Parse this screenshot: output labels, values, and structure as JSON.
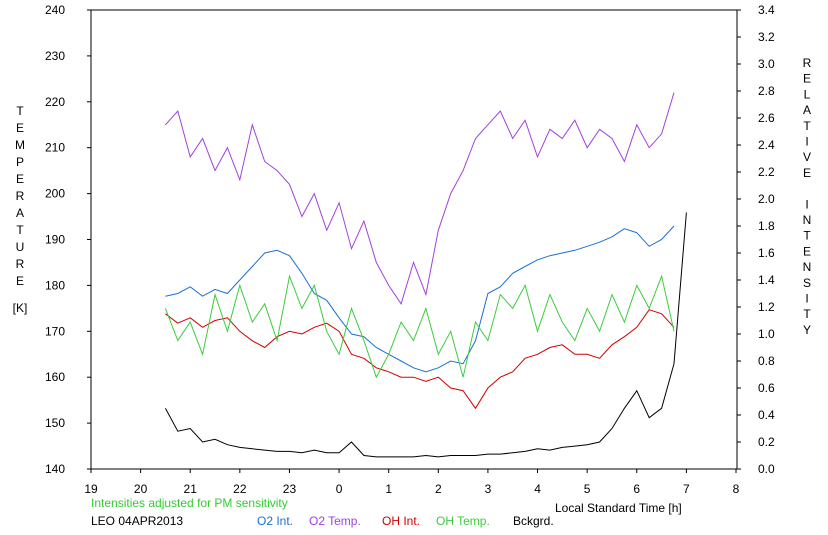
{
  "chart_data": {
    "type": "line",
    "y_label": "TEMPERATURE",
    "y_unit": "[K]",
    "y2_label": "RELATIVE INTENSITY",
    "x_label": "Local Standard Time [h]",
    "note": "Intensities adjusted for PM sensitivity",
    "note_color": "#33cc33",
    "station": "LEO 04APR2013",
    "x": [
      20.5,
      20.75,
      21,
      21.25,
      21.5,
      21.75,
      22,
      22.25,
      22.5,
      22.75,
      23,
      23.25,
      23.5,
      23.75,
      24,
      24.25,
      24.5,
      24.75,
      25,
      25.25,
      25.5,
      25.75,
      26,
      26.25,
      26.5,
      26.75,
      27,
      27.25,
      27.5,
      27.75,
      28,
      28.25,
      28.5,
      28.75,
      29,
      29.25,
      29.5,
      29.75,
      30,
      30.25,
      30.5,
      30.75,
      31
    ],
    "xlim": [
      19,
      32
    ],
    "xticks": [
      19,
      20,
      21,
      22,
      23,
      {
        "value": 24,
        "label": "0"
      },
      {
        "value": 25,
        "label": "1"
      },
      {
        "value": 26,
        "label": "2"
      },
      {
        "value": 27,
        "label": "3"
      },
      {
        "value": 28,
        "label": "4"
      },
      {
        "value": 29,
        "label": "5"
      },
      {
        "value": 30,
        "label": "6"
      },
      {
        "value": 31,
        "label": "7"
      },
      {
        "value": 32,
        "label": "8"
      }
    ],
    "ylim": [
      140,
      240
    ],
    "yticks": [
      140,
      150,
      160,
      170,
      180,
      190,
      200,
      210,
      220,
      230,
      240
    ],
    "y2lim": [
      0,
      3.4
    ],
    "y2ticks": [
      {
        "value": 0,
        "label": "0.0"
      },
      0.2,
      0.4,
      0.6,
      0.8,
      {
        "value": 1,
        "label": "1.0"
      },
      1.2,
      1.4,
      1.6,
      1.8,
      {
        "value": 2,
        "label": "2.0"
      },
      2.2,
      2.4,
      2.6,
      2.8,
      {
        "value": 3,
        "label": "3.0"
      },
      3.2,
      3.4
    ],
    "grid": false,
    "series": [
      {
        "name": "O2 Int.",
        "color": "#1c6fd8",
        "axis": "y2",
        "values": [
          1.28,
          1.3,
          1.35,
          1.28,
          1.33,
          1.3,
          1.4,
          1.5,
          1.6,
          1.62,
          1.58,
          1.45,
          1.3,
          1.25,
          1.12,
          1.0,
          0.98,
          0.9,
          0.85,
          0.8,
          0.75,
          0.72,
          0.75,
          0.8,
          0.78,
          0.95,
          1.3,
          1.35,
          1.45,
          1.5,
          1.55,
          1.58,
          1.6,
          1.62,
          1.65,
          1.68,
          1.72,
          1.78,
          1.75,
          1.65,
          1.7,
          1.8,
          null
        ]
      },
      {
        "name": "O2 Temp.",
        "color": "#a040e0",
        "axis": "y",
        "values": [
          215,
          218,
          208,
          212,
          205,
          210,
          203,
          215,
          207,
          205,
          202,
          195,
          200,
          192,
          198,
          188,
          194,
          185,
          180,
          176,
          185,
          178,
          192,
          200,
          205,
          212,
          215,
          218,
          212,
          216,
          208,
          214,
          212,
          216,
          210,
          214,
          212,
          207,
          215,
          210,
          213,
          222,
          null
        ]
      },
      {
        "name": "OH Int.",
        "color": "#d00000",
        "axis": "y2",
        "values": [
          1.15,
          1.08,
          1.12,
          1.05,
          1.1,
          1.12,
          1.02,
          0.95,
          0.9,
          0.98,
          1.02,
          1.0,
          1.05,
          1.08,
          1.02,
          0.85,
          0.82,
          0.75,
          0.72,
          0.68,
          0.68,
          0.65,
          0.68,
          0.6,
          0.58,
          0.45,
          0.6,
          0.68,
          0.72,
          0.82,
          0.85,
          0.9,
          0.92,
          0.85,
          0.85,
          0.82,
          0.92,
          0.98,
          1.05,
          1.18,
          1.15,
          1.05,
          null
        ]
      },
      {
        "name": "OH Temp.",
        "color": "#3ccc3c",
        "axis": "y",
        "values": [
          175,
          168,
          172,
          165,
          178,
          170,
          180,
          172,
          176,
          168,
          182,
          175,
          180,
          170,
          165,
          175,
          168,
          160,
          165,
          172,
          168,
          175,
          165,
          170,
          160,
          172,
          168,
          178,
          175,
          180,
          170,
          178,
          172,
          168,
          175,
          170,
          178,
          172,
          180,
          175,
          182,
          170,
          null
        ]
      },
      {
        "name": "Bckgrd.",
        "color": "#000000",
        "axis": "y2",
        "values": [
          0.45,
          0.28,
          0.3,
          0.2,
          0.22,
          0.18,
          0.16,
          0.15,
          0.14,
          0.13,
          0.13,
          0.12,
          0.14,
          0.12,
          0.12,
          0.2,
          0.1,
          0.09,
          0.09,
          0.09,
          0.09,
          0.1,
          0.09,
          0.1,
          0.1,
          0.1,
          0.11,
          0.11,
          0.12,
          0.13,
          0.15,
          0.14,
          0.16,
          0.17,
          0.18,
          0.2,
          0.3,
          0.45,
          0.58,
          0.38,
          0.45,
          0.78,
          1.9
        ]
      }
    ]
  }
}
